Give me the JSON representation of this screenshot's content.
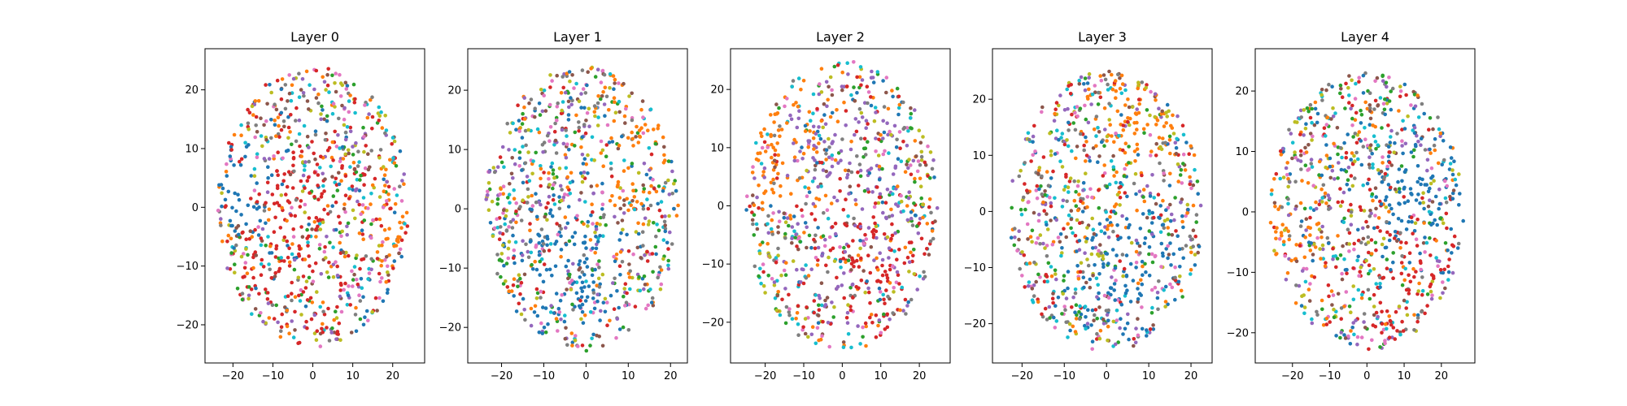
{
  "figure": {
    "background": "#ffffff"
  },
  "palette": [
    "#1f77b4",
    "#ff7f0e",
    "#2ca02c",
    "#d62728",
    "#9467bd",
    "#8c564b",
    "#e377c2",
    "#7f7f7f",
    "#bcbd22",
    "#17becf"
  ],
  "chart_data": [
    {
      "type": "scatter",
      "title": "Layer 0",
      "xlim": [
        -27,
        28
      ],
      "ylim": [
        -26.5,
        27
      ],
      "xticks": [
        -20,
        -10,
        0,
        10,
        20
      ],
      "yticks": [
        -20,
        -10,
        0,
        10,
        20
      ],
      "xtick_labels": [
        "−20",
        "−10",
        "0",
        "10",
        "20"
      ],
      "ytick_labels": [
        "−20",
        "−10",
        "0",
        "10",
        "20"
      ],
      "cloud": {
        "center": [
          0,
          0
        ],
        "rx": 24,
        "ry": 24,
        "n_points": 900
      },
      "clusters": [
        {
          "class": 1,
          "center": [
            20,
            -1
          ],
          "spread": 5
        },
        {
          "class": 0,
          "center": [
            -18,
            2
          ],
          "spread": 5
        },
        {
          "class": 3,
          "center": [
            -5,
            -5
          ],
          "spread": 12
        }
      ],
      "grid": false,
      "legend": "none"
    },
    {
      "type": "scatter",
      "title": "Layer 1",
      "xlim": [
        -28,
        24
      ],
      "ylim": [
        -26,
        27
      ],
      "xticks": [
        -20,
        -10,
        0,
        10,
        20
      ],
      "yticks": [
        -20,
        -10,
        0,
        10,
        20
      ],
      "xtick_labels": [
        "−20",
        "−10",
        "0",
        "10",
        "20"
      ],
      "ytick_labels": [
        "−20",
        "−10",
        "0",
        "10",
        "20"
      ],
      "cloud": {
        "center": [
          -1,
          0
        ],
        "rx": 23,
        "ry": 24,
        "n_points": 900
      },
      "clusters": [
        {
          "class": 1,
          "center": [
            13,
            13
          ],
          "spread": 7
        },
        {
          "class": 0,
          "center": [
            -2,
            -12
          ],
          "spread": 8
        }
      ],
      "grid": false,
      "legend": "none"
    },
    {
      "type": "scatter",
      "title": "Layer 2",
      "xlim": [
        -29,
        28
      ],
      "ylim": [
        -27,
        27
      ],
      "xticks": [
        -20,
        -10,
        0,
        10,
        20
      ],
      "yticks": [
        -20,
        -10,
        0,
        10,
        20
      ],
      "xtick_labels": [
        "−20",
        "−10",
        "0",
        "10",
        "20"
      ],
      "ytick_labels": [
        "−20",
        "−10",
        "0",
        "10",
        "20"
      ],
      "cloud": {
        "center": [
          0,
          0
        ],
        "rx": 25,
        "ry": 25,
        "n_points": 900
      },
      "clusters": [
        {
          "class": 1,
          "center": [
            -17,
            11
          ],
          "spread": 8
        },
        {
          "class": 3,
          "center": [
            8,
            -12
          ],
          "spread": 9
        },
        {
          "class": 4,
          "center": [
            5,
            4
          ],
          "spread": 10
        }
      ],
      "grid": false,
      "legend": "none"
    },
    {
      "type": "scatter",
      "title": "Layer 3",
      "xlim": [
        -27,
        25
      ],
      "ylim": [
        -27,
        29
      ],
      "xticks": [
        -20,
        -10,
        0,
        10,
        20
      ],
      "yticks": [
        -20,
        -10,
        0,
        10,
        20
      ],
      "xtick_labels": [
        "−20",
        "−10",
        "0",
        "10",
        "20"
      ],
      "ytick_labels": [
        "−20",
        "−10",
        "0",
        "10",
        "20"
      ],
      "cloud": {
        "center": [
          0,
          0
        ],
        "rx": 23,
        "ry": 25,
        "n_points": 900
      },
      "clusters": [
        {
          "class": 1,
          "center": [
            6,
            17
          ],
          "spread": 7
        },
        {
          "class": 0,
          "center": [
            6,
            -10
          ],
          "spread": 8
        }
      ],
      "grid": false,
      "legend": "none"
    },
    {
      "type": "scatter",
      "title": "Layer 4",
      "xlim": [
        -30,
        29
      ],
      "ylim": [
        -25,
        27
      ],
      "xticks": [
        -20,
        -10,
        0,
        10,
        20
      ],
      "yticks": [
        -20,
        -10,
        0,
        10,
        20
      ],
      "xtick_labels": [
        "−20",
        "−10",
        "0",
        "10",
        "20"
      ],
      "ytick_labels": [
        "−20",
        "−10",
        "0",
        "10",
        "20"
      ],
      "cloud": {
        "center": [
          0,
          0
        ],
        "rx": 26,
        "ry": 23,
        "n_points": 900
      },
      "clusters": [
        {
          "class": 1,
          "center": [
            -22,
            -2
          ],
          "spread": 6
        },
        {
          "class": 0,
          "center": [
            14,
            3
          ],
          "spread": 8
        },
        {
          "class": 3,
          "center": [
            9,
            -9
          ],
          "spread": 8
        }
      ],
      "grid": false,
      "legend": "none"
    }
  ]
}
